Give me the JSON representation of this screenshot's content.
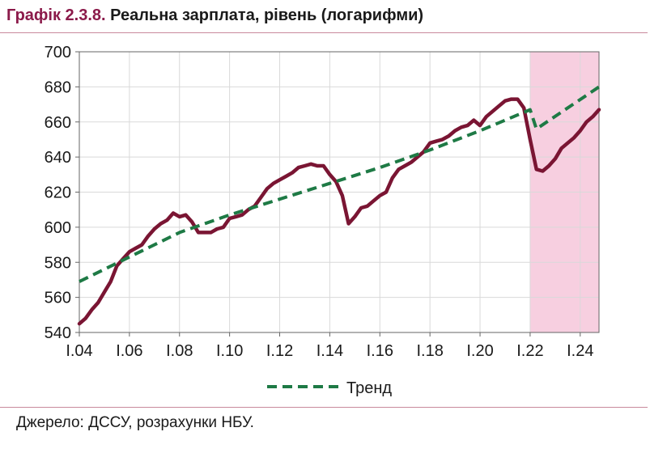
{
  "title": {
    "number": "Графік 2.3.8.",
    "text": "Реальна зарплата, рівень (логарифми)"
  },
  "source": "Джерело: ДССУ, розрахунки НБУ.",
  "colors": {
    "wage": "#7a1533",
    "trend": "#1e7a45",
    "forecast_shade": "#f7cfe0",
    "grid": "#d9d9d9",
    "axis": "#666666",
    "title_accent": "#8b1a4a"
  },
  "chart_data": {
    "type": "line",
    "x_unit": "quarter",
    "x_tick_labels": [
      "I.04",
      "I.06",
      "I.08",
      "I.10",
      "I.12",
      "I.14",
      "I.16",
      "I.18",
      "I.20",
      "I.22",
      "I.24"
    ],
    "x_range": [
      "2004Q1",
      "2024Q4"
    ],
    "ylim": [
      540,
      700
    ],
    "y_ticks": [
      540,
      560,
      580,
      600,
      620,
      640,
      660,
      680,
      700
    ],
    "grid": "vertical and horizontal",
    "shaded_region": {
      "from": "2022Q1",
      "to": "2024Q4"
    },
    "legend": {
      "position": "bottom",
      "entries": [
        "Тренд"
      ]
    },
    "series": [
      {
        "key": "wage",
        "style": "solid",
        "x": [
          "2004Q1",
          "2004Q2",
          "2004Q3",
          "2004Q4",
          "2005Q1",
          "2005Q2",
          "2005Q3",
          "2005Q4",
          "2006Q1",
          "2006Q2",
          "2006Q3",
          "2006Q4",
          "2007Q1",
          "2007Q2",
          "2007Q3",
          "2007Q4",
          "2008Q1",
          "2008Q2",
          "2008Q3",
          "2008Q4",
          "2009Q1",
          "2009Q2",
          "2009Q3",
          "2009Q4",
          "2010Q1",
          "2010Q2",
          "2010Q3",
          "2010Q4",
          "2011Q1",
          "2011Q2",
          "2011Q3",
          "2011Q4",
          "2012Q1",
          "2012Q2",
          "2012Q3",
          "2012Q4",
          "2013Q1",
          "2013Q2",
          "2013Q3",
          "2013Q4",
          "2014Q1",
          "2014Q2",
          "2014Q3",
          "2014Q4",
          "2015Q1",
          "2015Q2",
          "2015Q3",
          "2015Q4",
          "2016Q1",
          "2016Q2",
          "2016Q3",
          "2016Q4",
          "2017Q1",
          "2017Q2",
          "2017Q3",
          "2017Q4",
          "2018Q1",
          "2018Q2",
          "2018Q3",
          "2018Q4",
          "2019Q1",
          "2019Q2",
          "2019Q3",
          "2019Q4",
          "2020Q1",
          "2020Q2",
          "2020Q3",
          "2020Q4",
          "2021Q1",
          "2021Q2",
          "2021Q3",
          "2021Q4",
          "2022Q1",
          "2022Q2",
          "2022Q3",
          "2022Q4",
          "2023Q1",
          "2023Q2",
          "2023Q3",
          "2023Q4",
          "2024Q1",
          "2024Q2",
          "2024Q3",
          "2024Q4"
        ],
        "values": [
          545,
          548,
          553,
          557,
          563,
          569,
          578,
          582,
          586,
          588,
          590,
          595,
          599,
          602,
          604,
          608,
          606,
          607,
          603,
          597,
          597,
          597,
          599,
          600,
          605,
          606,
          607,
          610,
          612,
          617,
          622,
          625,
          627,
          629,
          631,
          634,
          635,
          636,
          635,
          635,
          630,
          626,
          618,
          602,
          606,
          611,
          612,
          615,
          618,
          620,
          628,
          633,
          635,
          637,
          640,
          643,
          648,
          649,
          650,
          652,
          655,
          657,
          658,
          661,
          658,
          663,
          666,
          669,
          672,
          673,
          673,
          668,
          650,
          633,
          632,
          635,
          639,
          645,
          648,
          651,
          655,
          660,
          663,
          667
        ]
      },
      {
        "key": "trend",
        "name": "Тренд",
        "style": "dashed",
        "x": [
          "2004Q1",
          "2006Q1",
          "2008Q1",
          "2010Q1",
          "2012Q1",
          "2014Q1",
          "2016Q1",
          "2018Q1",
          "2020Q1",
          "2022Q1",
          "2022Q2",
          "2024Q4"
        ],
        "values": [
          569,
          583,
          597,
          607,
          616,
          625,
          634,
          644,
          655,
          667,
          656,
          680
        ]
      }
    ]
  }
}
